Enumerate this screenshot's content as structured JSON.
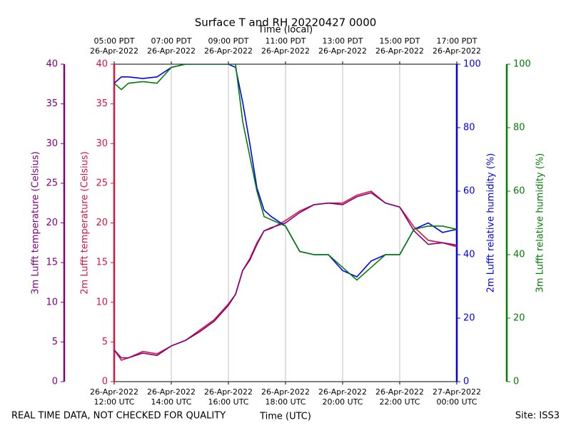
{
  "chart_data": {
    "type": "line",
    "title": "Surface T and RH 20220427 0000",
    "top_xlabel": "Time (local)",
    "xlabel": "Time (UTC)",
    "footer_left": "REAL TIME DATA, NOT CHECKED FOR QUALITY",
    "footer_right": "Site: ISS3",
    "x": [
      12,
      12.25,
      12.5,
      13,
      13.5,
      14,
      14.5,
      15,
      15.5,
      16,
      16.25,
      16.5,
      16.75,
      17,
      17.25,
      17.5,
      18,
      18.5,
      19,
      19.5,
      20,
      20.5,
      21,
      21.5,
      22,
      22.5,
      23,
      23.5,
      24
    ],
    "xlim": [
      12,
      24
    ],
    "xticks": [
      {
        "value": 12,
        "label": [
          "26-Apr-2022",
          "12:00 UTC"
        ]
      },
      {
        "value": 14,
        "label": [
          "26-Apr-2022",
          "14:00 UTC"
        ]
      },
      {
        "value": 16,
        "label": [
          "26-Apr-2022",
          "16:00 UTC"
        ]
      },
      {
        "value": 18,
        "label": [
          "26-Apr-2022",
          "18:00 UTC"
        ]
      },
      {
        "value": 20,
        "label": [
          "26-Apr-2022",
          "20:00 UTC"
        ]
      },
      {
        "value": 22,
        "label": [
          "26-Apr-2022",
          "22:00 UTC"
        ]
      },
      {
        "value": 24,
        "label": [
          "27-Apr-2022",
          "00:00 UTC"
        ]
      }
    ],
    "top_xtick_labels": [
      [
        "05:00 PDT",
        "26-Apr-2022"
      ],
      [
        "07:00 PDT",
        "26-Apr-2022"
      ],
      [
        "09:00 PDT",
        "26-Apr-2022"
      ],
      [
        "11:00 PDT",
        "26-Apr-2022"
      ],
      [
        "13:00 PDT",
        "26-Apr-2022"
      ],
      [
        "15:00 PDT",
        "26-Apr-2022"
      ],
      [
        "17:00 PDT",
        "26-Apr-2022"
      ]
    ],
    "grid": true,
    "ylim": [
      0,
      40
    ],
    "yticks": [
      0,
      5,
      10,
      15,
      20,
      25,
      30,
      35,
      40
    ],
    "y2lim": [
      0,
      100
    ],
    "y2ticks": [
      0,
      20,
      40,
      60,
      80,
      100
    ],
    "left_axes": [
      {
        "label": "3m Lufft temperature (Celsius)",
        "color": "#800080"
      },
      {
        "label": "2m Lufft temperature (Celsius)",
        "color": "#dc143c"
      }
    ],
    "right_axes": [
      {
        "label": "2m Lufft relative humidity (%)",
        "color": "#0000ff"
      },
      {
        "label": "3m Lufft relative humidity (%)",
        "color": "#008000"
      }
    ],
    "series": [
      {
        "name": "2m Lufft temperature",
        "color": "#dc143c",
        "axis": "y",
        "values": [
          4,
          2.7,
          3,
          3.8,
          3.5,
          4.5,
          5.2,
          6.5,
          7.8,
          9.8,
          11,
          14,
          15.5,
          17.5,
          19,
          19.3,
          20.3,
          21.5,
          22.3,
          22.5,
          22.5,
          23.5,
          24,
          22.5,
          22,
          19.5,
          17.8,
          17.5,
          17
        ]
      },
      {
        "name": "3m Lufft temperature",
        "color": "#800080",
        "axis": "y",
        "values": [
          4,
          3,
          3,
          3.6,
          3.3,
          4.5,
          5.2,
          6.3,
          7.6,
          9.6,
          11,
          14,
          15.3,
          17.3,
          19,
          19.4,
          20,
          21.3,
          22.3,
          22.5,
          22.3,
          23.3,
          23.8,
          22.5,
          22,
          19,
          17.3,
          17.5,
          17.2
        ]
      },
      {
        "name": "2m Lufft relative humidity",
        "color": "#0000ff",
        "axis": "y2",
        "values": [
          94,
          96,
          96,
          95.5,
          96,
          99,
          100,
          100,
          100,
          100,
          99,
          88,
          75,
          61,
          54,
          52,
          49,
          41,
          40,
          40,
          35,
          33,
          38,
          40,
          40,
          48,
          50,
          47,
          48
        ]
      },
      {
        "name": "3m Lufft relative humidity",
        "color": "#008000",
        "axis": "y2",
        "values": [
          94,
          92,
          94,
          94.5,
          94,
          99,
          100,
          100,
          100,
          100,
          100,
          82,
          71,
          60,
          52,
          51,
          49,
          41,
          40,
          40,
          36,
          32,
          36,
          40,
          40,
          48,
          49,
          49,
          48
        ]
      }
    ]
  }
}
